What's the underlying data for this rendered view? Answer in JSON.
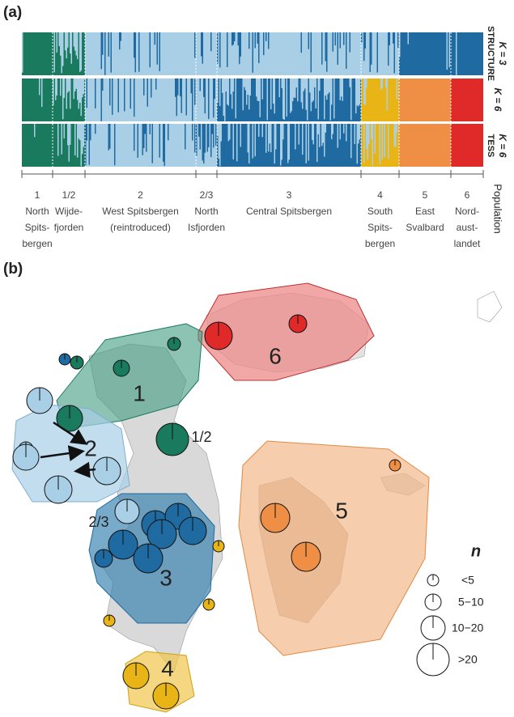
{
  "panel_a": {
    "label": "(a)",
    "rows": [
      {
        "method": "STRUCTURE",
        "k": "K = 3"
      },
      {
        "k": "K = 6"
      },
      {
        "method": "TESS",
        "k": "K = 6"
      }
    ],
    "axis_title": "Population",
    "populations": [
      {
        "id": "1",
        "name": [
          "North",
          "Spits-",
          "bergen"
        ]
      },
      {
        "id": "1/2",
        "name": [
          "Wijde-",
          "fjorden"
        ]
      },
      {
        "id": "2",
        "name": [
          "West Spitsbergen",
          "(reintroduced)"
        ]
      },
      {
        "id": "2/3",
        "name": [
          "North",
          "Isfjorden"
        ]
      },
      {
        "id": "3",
        "name": [
          "Central Spitsbergen"
        ]
      },
      {
        "id": "4",
        "name": [
          "South",
          "Spits-",
          "bergen"
        ]
      },
      {
        "id": "5",
        "name": [
          "East",
          "Svalbard"
        ]
      },
      {
        "id": "6",
        "name": [
          "Nord-",
          "aust-",
          "landet"
        ]
      }
    ]
  },
  "panel_b": {
    "label": "(b)",
    "regions": [
      "1",
      "2",
      "1/2",
      "2/3",
      "3",
      "4",
      "5",
      "6"
    ],
    "legend": {
      "title": "n",
      "entries": [
        "<5",
        "5−10",
        "10−20",
        ">20"
      ]
    }
  }
}
